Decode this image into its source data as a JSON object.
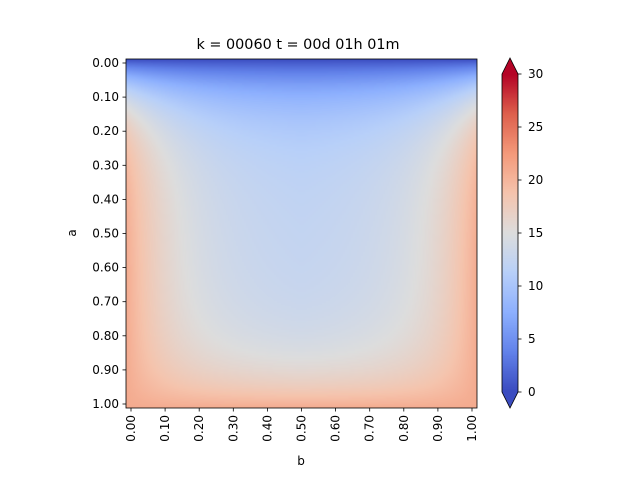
{
  "chart_data": {
    "type": "heatmap",
    "title": "k = 00060 t = 00d 01h 01m",
    "xlabel": "b",
    "ylabel": "a",
    "x_range": [
      0.0,
      1.0
    ],
    "y_range": [
      0.0,
      1.0
    ],
    "y_inverted": true,
    "x_ticks": [
      "0.00",
      "0.10",
      "0.20",
      "0.30",
      "0.40",
      "0.50",
      "0.60",
      "0.70",
      "0.80",
      "0.90",
      "1.00"
    ],
    "y_ticks": [
      "0.00",
      "0.10",
      "0.20",
      "0.30",
      "0.40",
      "0.50",
      "0.60",
      "0.70",
      "0.80",
      "0.90",
      "1.00"
    ],
    "colormap": "coolwarm",
    "colorbar": {
      "min": 0,
      "max": 30,
      "ticks": [
        "0",
        "5",
        "10",
        "15",
        "20",
        "25",
        "30"
      ],
      "extend": "both",
      "under_color": "#3b4cc0",
      "over_color": "#b40426"
    },
    "field_description_values": {
      "top_edge": 0,
      "interior_center": 12,
      "side_and_bottom_edges": 21
    },
    "grid": false,
    "legend": "none"
  }
}
